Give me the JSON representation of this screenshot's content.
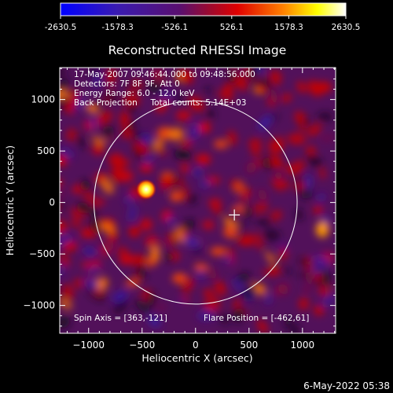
{
  "chart_data": {
    "type": "heatmap",
    "title": "Reconstructed RHESSI Image",
    "xlabel": "Heliocentric X (arcsec)",
    "ylabel": "Heliocentric Y (arcsec)",
    "xlim": [
      -1270,
      1310
    ],
    "ylim": [
      -1270,
      1310
    ],
    "xticks": [
      -1000,
      -500,
      0,
      500,
      1000
    ],
    "yticks": [
      -1000,
      -500,
      0,
      500,
      1000
    ],
    "colorbar": {
      "range": [
        -2630.5,
        2630.5
      ],
      "ticks": [
        -2630.5,
        -1578.3,
        -526.1,
        526.1,
        1578.3,
        2630.5
      ],
      "tick_labels": [
        "-2630.5",
        "-1578.3",
        "-526.1",
        "526.1",
        "1578.3",
        "2630.5"
      ],
      "colors": [
        "#0000ff",
        "#4b0082",
        "#550055",
        "#e00000",
        "#ff8000",
        "#ffff00",
        "#ffffff"
      ]
    },
    "info_lines": [
      "17-May-2007 09:46:44.000 to 09:48:56.000",
      "Detectors: 7F 8F 9F, Att 0",
      "Energy Range: 6.0 - 12.0 keV",
      "Back Projection     Total counts: 5.14E+03"
    ],
    "spin_axis_label": "Spin Axis = [363,-121]",
    "flare_position_label": "Flare Position = [-462,61]",
    "spin_axis": [
      363,
      -121
    ],
    "flare_position": [
      -462,
      61
    ],
    "solar_disk_radius": 950,
    "footer_date": "6-May-2022 05:38"
  }
}
